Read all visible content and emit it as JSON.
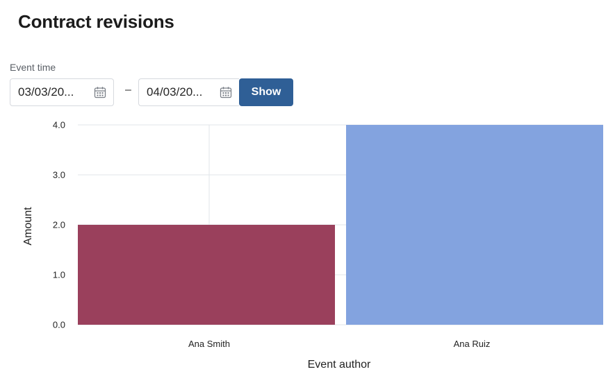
{
  "header": {
    "title": "Contract revisions"
  },
  "filter": {
    "label": "Event time",
    "from_value": "03/03/20...",
    "to_value": "04/03/20...",
    "separator": "–",
    "show_label": "Show"
  },
  "icons": {
    "date_picker": "calendar-icon"
  },
  "colors": {
    "accent": "#2f5f96"
  },
  "chart_data": {
    "type": "bar",
    "categories": [
      "Ana Smith",
      "Ana Ruiz"
    ],
    "values": [
      2,
      4
    ],
    "bar_colors": [
      "#9a405c",
      "#83a3df"
    ],
    "xlabel": "Event author",
    "ylabel": "Amount",
    "ylim": [
      0,
      4
    ],
    "yticks": [
      "0.0",
      "1.0",
      "2.0",
      "3.0",
      "4.0"
    ],
    "grid": true,
    "legend": false
  }
}
